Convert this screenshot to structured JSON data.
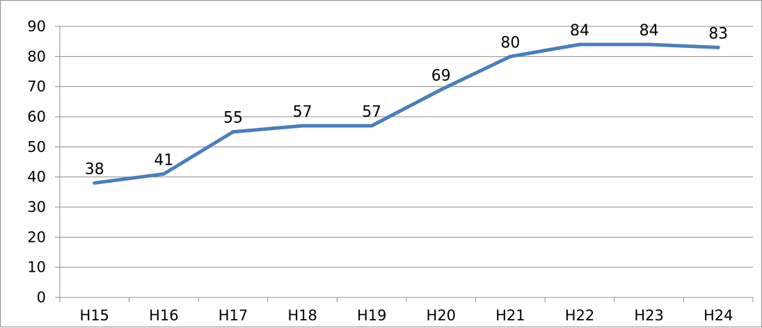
{
  "chart_data": {
    "type": "line",
    "categories": [
      "H15",
      "H16",
      "H17",
      "H18",
      "H19",
      "H20",
      "H21",
      "H22",
      "H23",
      "H24"
    ],
    "series": [
      {
        "values": [
          38,
          41,
          55,
          57,
          57,
          69,
          80,
          84,
          84,
          83
        ],
        "color": "#4a7ebb"
      }
    ],
    "ylim": [
      0,
      90
    ],
    "yticks": [
      0,
      10,
      20,
      30,
      40,
      50,
      60,
      70,
      80,
      90
    ],
    "grid": true,
    "data_labels": true,
    "legend": "none"
  }
}
